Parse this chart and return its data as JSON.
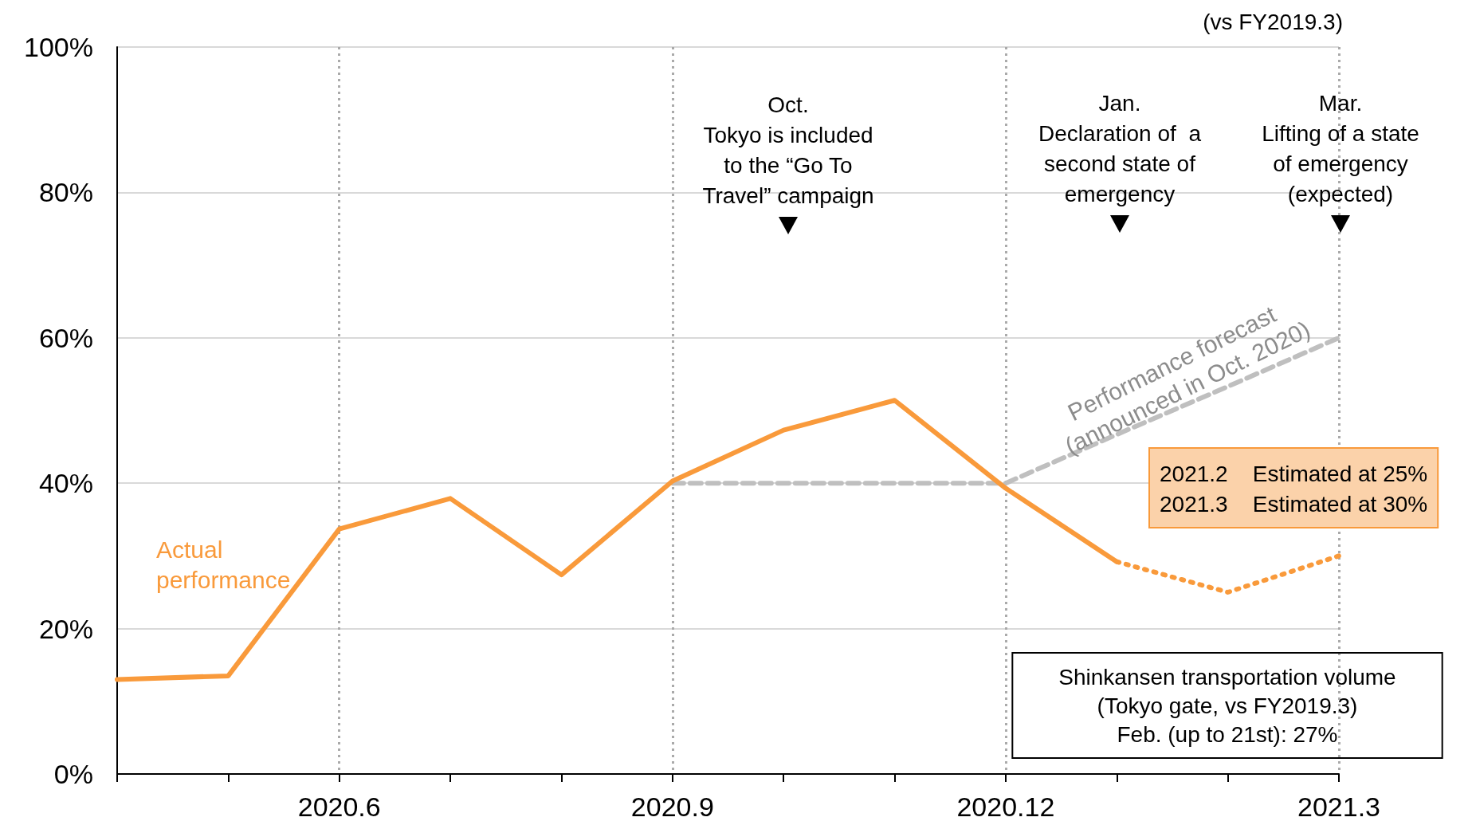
{
  "chart_data": {
    "type": "line",
    "categories": [
      null,
      null,
      "2020.6",
      null,
      null,
      "2020.9",
      null,
      null,
      "2020.12",
      null,
      null,
      "2021.3"
    ],
    "series": [
      {
        "name": "Actual performance",
        "color": "#f99a3b",
        "line_style": "solid",
        "values": [
          13,
          13.5,
          33.7,
          37.9,
          27.4,
          40.3,
          47.3,
          51.4,
          39.3,
          29.2,
          null,
          null
        ]
      },
      {
        "color": "#f99a3b",
        "line_style": "dotted",
        "values": [
          null,
          null,
          null,
          null,
          null,
          null,
          null,
          null,
          null,
          29.2,
          25,
          30
        ]
      },
      {
        "name": "Performance forecast (announced in Oct. 2020)",
        "color": "#bfbfbf",
        "line_style": "dashed",
        "values": [
          null,
          null,
          null,
          null,
          null,
          40,
          40,
          40,
          40,
          46.7,
          53.3,
          60
        ]
      }
    ],
    "ylim": [
      0,
      100
    ],
    "yticks": [
      {
        "value": 0,
        "label": "0%"
      },
      {
        "value": 20,
        "label": "20%"
      },
      {
        "value": 40,
        "label": "40%"
      },
      {
        "value": 60,
        "label": "60%"
      },
      {
        "value": 80,
        "label": "80%"
      },
      {
        "value": 100,
        "label": "100%"
      }
    ],
    "grid": true,
    "marker": "none",
    "annotations": [
      "(vs FY2019.3)",
      "Oct.\nTokyo is included\nto the “Go To\nTravel” campaign",
      "Jan.\nDeclaration of  a\nsecond state of\nemergency",
      "Mar.\nLifting of a state\nof emergency\n(expected)",
      "2021.2    Estimated at 25%\n2021.3    Estimated at 30%",
      "Shinkansen transportation volume\n(Tokyo gate, vs FY2019.3)\nFeb. (up to 21st): 27%"
    ]
  }
}
